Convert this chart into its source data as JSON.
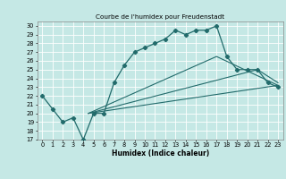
{
  "title": "Courbe de l'humidex pour Freudenstadt",
  "xlabel": "Humidex (Indice chaleur)",
  "xlim": [
    -0.5,
    23.5
  ],
  "ylim": [
    17,
    30.5
  ],
  "yticks": [
    17,
    18,
    19,
    20,
    21,
    22,
    23,
    24,
    25,
    26,
    27,
    28,
    29,
    30
  ],
  "xticks": [
    0,
    1,
    2,
    3,
    4,
    5,
    6,
    7,
    8,
    9,
    10,
    11,
    12,
    13,
    14,
    15,
    16,
    17,
    18,
    19,
    20,
    21,
    22,
    23
  ],
  "bg_color": "#c5e8e5",
  "line_color": "#226b6b",
  "grid_color": "#ffffff",
  "main_line": {
    "x": [
      0,
      1,
      2,
      3,
      4,
      5,
      6,
      7,
      8,
      9,
      10,
      11,
      12,
      13,
      14,
      15,
      16,
      17,
      18,
      19,
      20,
      21,
      22,
      23
    ],
    "y": [
      22,
      20.5,
      19,
      19.5,
      17,
      20,
      20,
      23.5,
      25.5,
      27,
      27.5,
      28,
      28.5,
      29.5,
      29,
      29.5,
      29.5,
      30,
      26.5,
      25,
      25,
      25,
      23.5,
      23
    ]
  },
  "fan_lines": [
    {
      "x": [
        4.5,
        23
      ],
      "y": [
        20,
        23.2
      ]
    },
    {
      "x": [
        4.5,
        21,
        23
      ],
      "y": [
        20,
        25.0,
        23.5
      ]
    },
    {
      "x": [
        4.5,
        17,
        23
      ],
      "y": [
        20,
        26.5,
        23.2
      ]
    }
  ]
}
